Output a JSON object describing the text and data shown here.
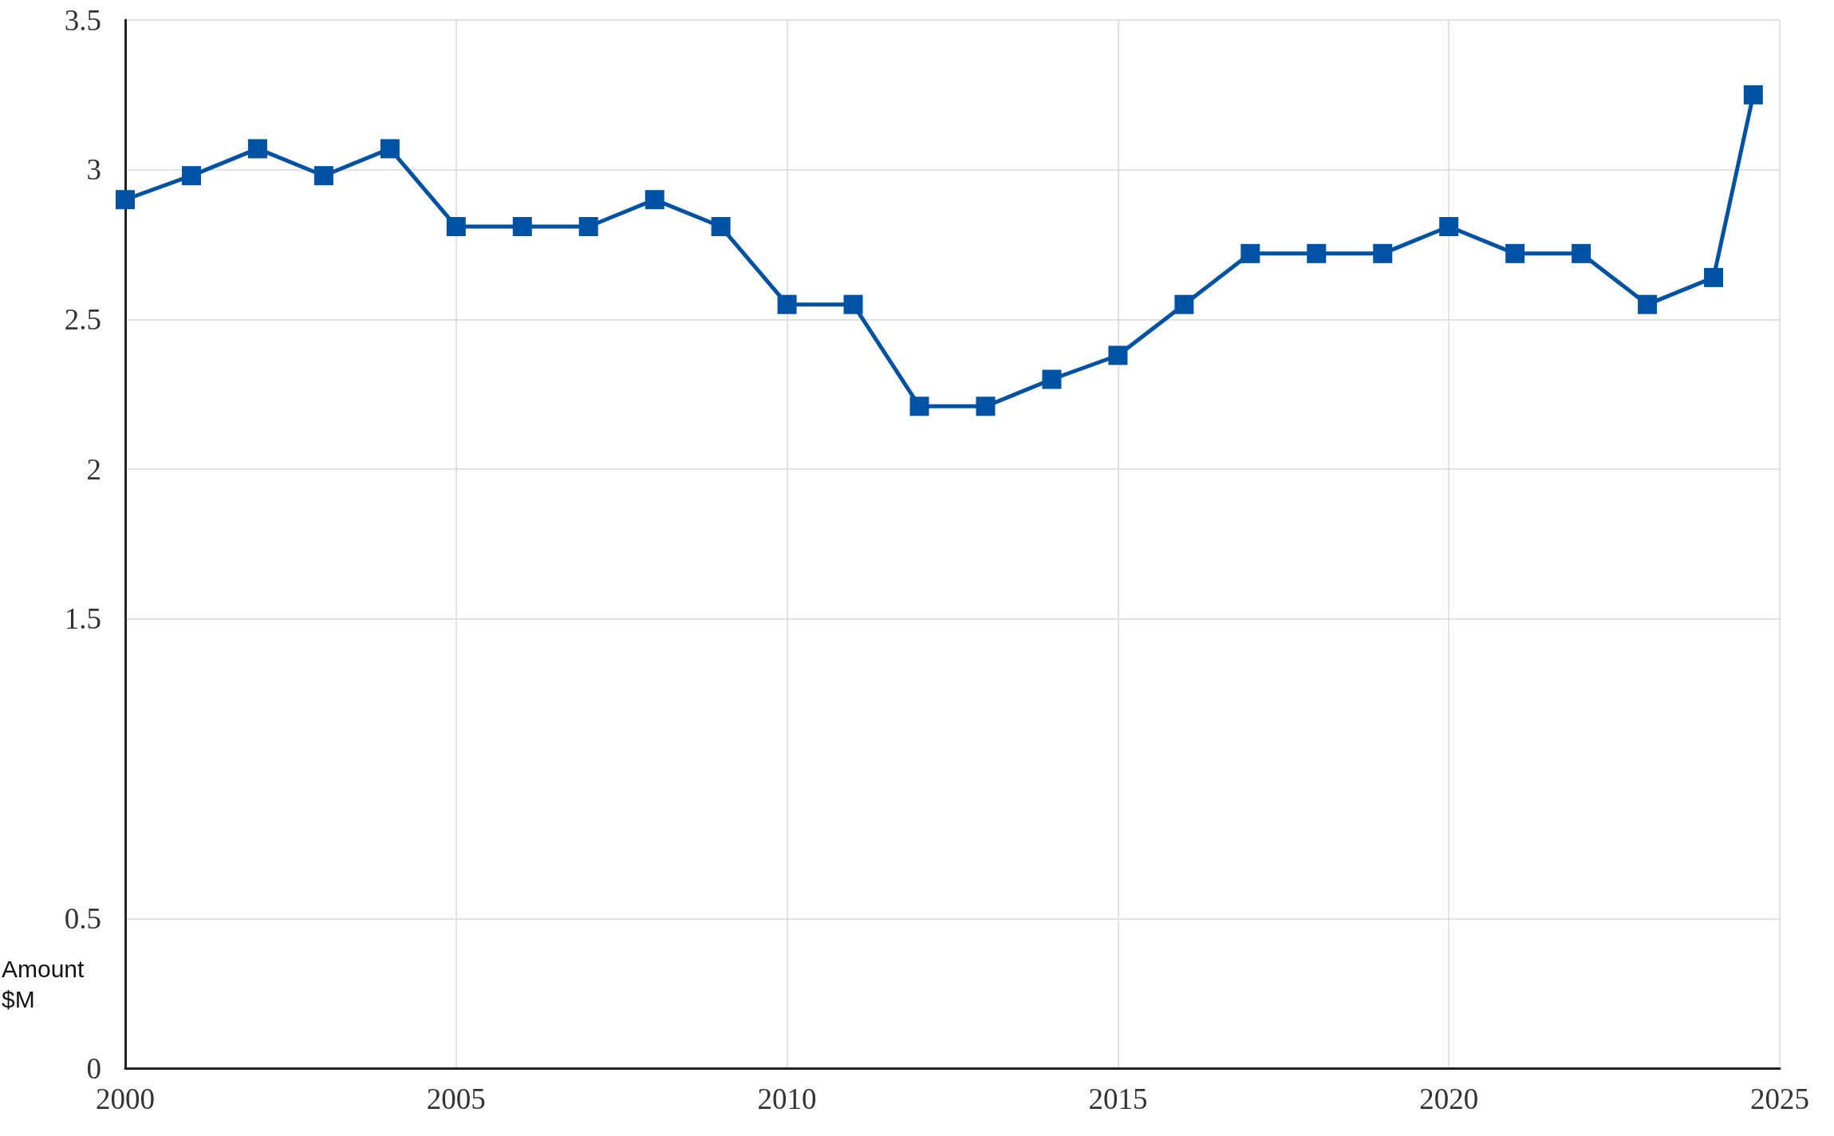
{
  "chart_data": {
    "type": "line",
    "ylabel": "Amount $M",
    "x": [
      2000,
      2001,
      2002,
      2003,
      2004,
      2005,
      2006,
      2007,
      2008,
      2009,
      2010,
      2011,
      2012,
      2013,
      2014,
      2015,
      2016,
      2017,
      2018,
      2019,
      2020,
      2021,
      2022,
      2023,
      2024,
      2024.6
    ],
    "series": [
      {
        "color": "#0052a5",
        "values": [
          2.9,
          2.98,
          3.07,
          2.98,
          3.07,
          2.81,
          2.81,
          2.81,
          2.9,
          2.81,
          2.55,
          2.55,
          2.21,
          2.21,
          2.3,
          2.38,
          2.55,
          2.72,
          2.72,
          2.72,
          2.81,
          2.72,
          2.72,
          2.55,
          2.64,
          3.25
        ]
      }
    ],
    "xlim": [
      2000,
      2025
    ],
    "xticks": [
      2000,
      2005,
      2010,
      2015,
      2020,
      2025
    ],
    "ylim": [
      0,
      3.5
    ],
    "yticks": [
      0,
      0.5,
      1.5,
      2,
      2.5,
      3,
      3.5
    ],
    "grid": true,
    "marker": "square",
    "line_style": "solid"
  }
}
